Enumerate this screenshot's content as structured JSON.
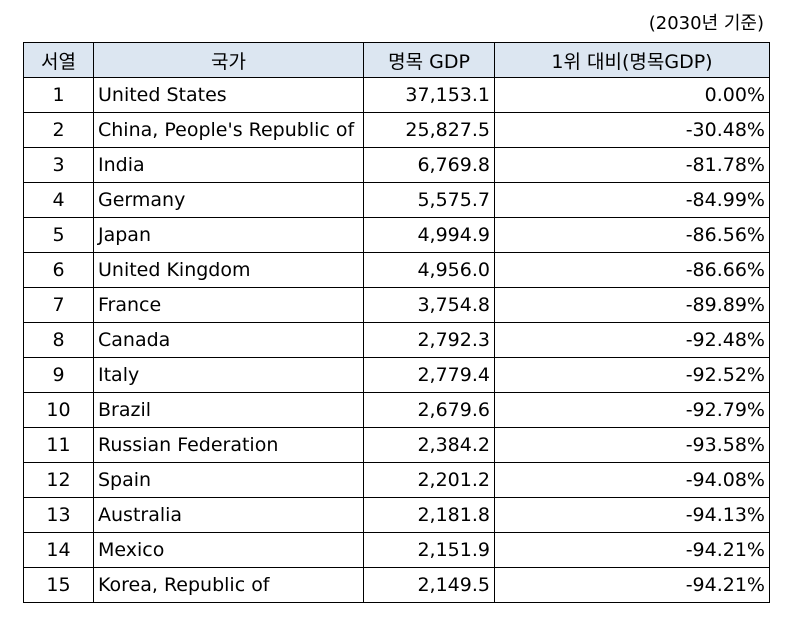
{
  "note": "(2030년 기준)",
  "headers": {
    "rank": "서열",
    "country": "국가",
    "gdp": "명목 GDP",
    "ratio": "1위 대비(명목GDP)"
  },
  "rows": [
    {
      "rank": "1",
      "country": "United States",
      "gdp": "37,153.1",
      "ratio": "0.00%"
    },
    {
      "rank": "2",
      "country": "China, People's Republic of",
      "gdp": "25,827.5",
      "ratio": "-30.48%"
    },
    {
      "rank": "3",
      "country": "India",
      "gdp": "6,769.8",
      "ratio": "-81.78%"
    },
    {
      "rank": "4",
      "country": "Germany",
      "gdp": "5,575.7",
      "ratio": "-84.99%"
    },
    {
      "rank": "5",
      "country": "Japan",
      "gdp": "4,994.9",
      "ratio": "-86.56%"
    },
    {
      "rank": "6",
      "country": "United Kingdom",
      "gdp": "4,956.0",
      "ratio": "-86.66%"
    },
    {
      "rank": "7",
      "country": "France",
      "gdp": "3,754.8",
      "ratio": "-89.89%"
    },
    {
      "rank": "8",
      "country": "Canada",
      "gdp": "2,792.3",
      "ratio": "-92.48%"
    },
    {
      "rank": "9",
      "country": "Italy",
      "gdp": "2,779.4",
      "ratio": "-92.52%"
    },
    {
      "rank": "10",
      "country": "Brazil",
      "gdp": "2,679.6",
      "ratio": "-92.79%"
    },
    {
      "rank": "11",
      "country": "Russian Federation",
      "gdp": "2,384.2",
      "ratio": "-93.58%"
    },
    {
      "rank": "12",
      "country": "Spain",
      "gdp": "2,201.2",
      "ratio": "-94.08%"
    },
    {
      "rank": "13",
      "country": "Australia",
      "gdp": "2,181.8",
      "ratio": "-94.13%"
    },
    {
      "rank": "14",
      "country": "Mexico",
      "gdp": "2,151.9",
      "ratio": "-94.21%"
    },
    {
      "rank": "15",
      "country": "Korea, Republic of",
      "gdp": "2,149.5",
      "ratio": "-94.21%"
    }
  ],
  "colors": {
    "header_bg": "#dce6f1",
    "border": "#000000"
  }
}
